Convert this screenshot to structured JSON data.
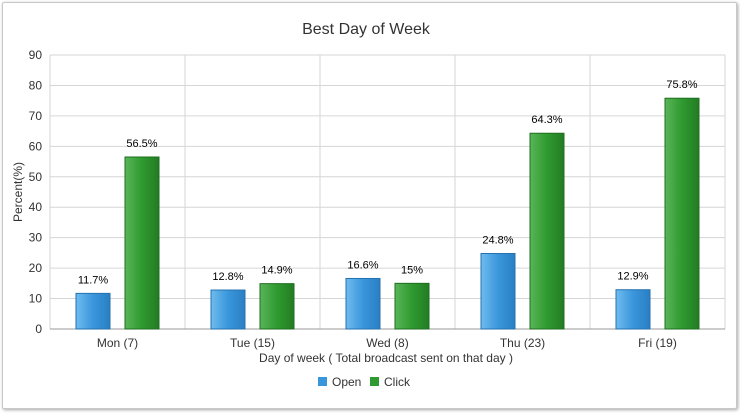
{
  "chart_data": {
    "type": "bar",
    "title": "Best Day of Week",
    "xlabel": "Day of week ( Total broadcast sent on that day )",
    "ylabel": "Percent(%)",
    "ylim": [
      0,
      90
    ],
    "yticks": [
      0,
      10,
      20,
      30,
      40,
      50,
      60,
      70,
      80,
      90
    ],
    "grid": true,
    "legend_position": "bottom",
    "categories": [
      "Mon (7)",
      "Tue (15)",
      "Wed (8)",
      "Thu (23)",
      "Fri (19)"
    ],
    "series": [
      {
        "name": "Open",
        "color": "#3a96db",
        "values": [
          11.7,
          12.8,
          16.6,
          24.8,
          12.9
        ],
        "labels": [
          "11.7%",
          "12.8%",
          "16.6%",
          "24.8%",
          "12.9%"
        ]
      },
      {
        "name": "Click",
        "color": "#2f9a2f",
        "values": [
          56.5,
          14.9,
          15,
          64.3,
          75.8
        ],
        "labels": [
          "56.5%",
          "14.9%",
          "15%",
          "64.3%",
          "75.8%"
        ]
      }
    ]
  }
}
